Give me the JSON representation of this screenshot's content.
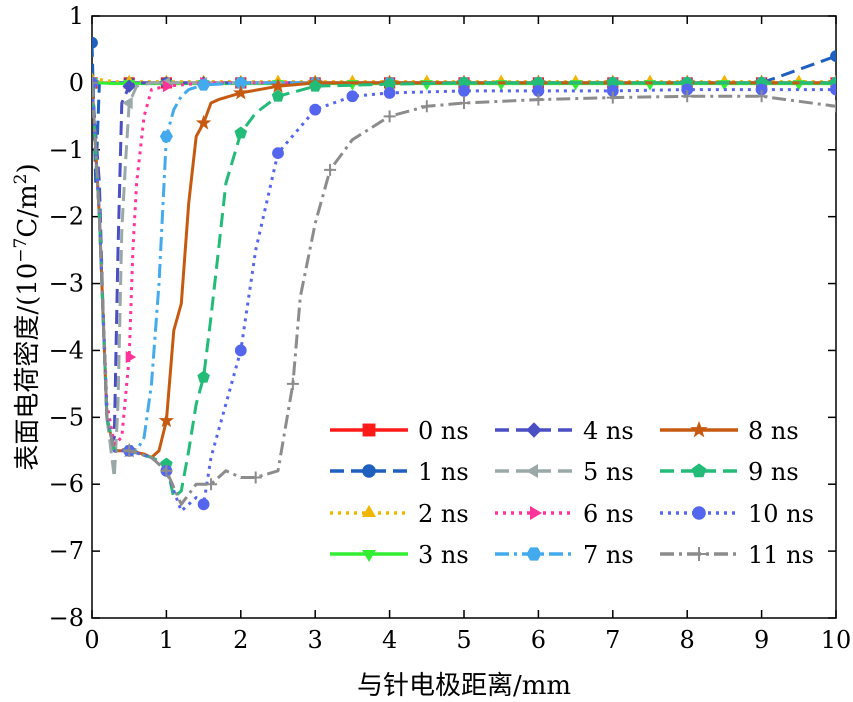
{
  "chart_data": {
    "type": "line",
    "xlabel": "与针电极距离/mm",
    "ylabel_main": "表面电荷密度/(10",
    "ylabel_exp": "−7",
    "ylabel_unit": "C/m",
    "ylabel_unit_exp": "2",
    "ylabel_close": ")",
    "xlim": [
      0,
      10
    ],
    "ylim": [
      -8,
      1
    ],
    "xticks": [
      "0",
      "1",
      "2",
      "3",
      "4",
      "5",
      "6",
      "7",
      "8",
      "9",
      "10"
    ],
    "yticks": [
      "1",
      "0",
      "−1",
      "−2",
      "−3",
      "−4",
      "−5",
      "−6",
      "−7",
      "−8"
    ],
    "legend_position": "lower-right",
    "series": [
      {
        "name": "0 ns",
        "color": "#ff1a1a",
        "marker": "square",
        "dash": "solid",
        "x": [
          0,
          0.1,
          0.5,
          1,
          2,
          3,
          4,
          5,
          6,
          7,
          8,
          9,
          10
        ],
        "y": [
          0,
          0,
          0,
          0,
          0,
          0,
          0,
          0,
          0,
          0,
          0,
          0,
          0
        ]
      },
      {
        "name": "1 ns",
        "color": "#1f5fbf",
        "marker": "circle",
        "dash": "dash",
        "x": [
          0,
          0.05,
          0.1,
          0.5,
          1,
          2,
          3,
          4,
          5,
          6,
          7,
          8,
          9,
          10
        ],
        "y": [
          0.6,
          -1.5,
          0,
          0,
          0,
          0,
          0,
          0,
          0,
          0,
          0,
          0,
          0,
          0.4
        ]
      },
      {
        "name": "2 ns",
        "color": "#f2b500",
        "marker": "triangle-up",
        "dash": "dot",
        "x": [
          0,
          0.1,
          0.3,
          0.5,
          1,
          1.5,
          2,
          2.5,
          3,
          3.5,
          4,
          4.5,
          5,
          5.5,
          6,
          6.5,
          7,
          7.5,
          8,
          8.5,
          9,
          9.5,
          10
        ],
        "y": [
          0.05,
          0.05,
          0.02,
          0.02,
          0.02,
          0.02,
          0.02,
          0.02,
          0.02,
          0.02,
          0.02,
          0.02,
          0.02,
          0.02,
          0.02,
          0.02,
          0.02,
          0.02,
          0.02,
          0.02,
          0.02,
          0.02,
          0.02
        ]
      },
      {
        "name": "3 ns",
        "color": "#33ee33",
        "marker": "triangle-down",
        "dash": "solid",
        "x": [
          0,
          0.1,
          0.3,
          0.5,
          1,
          1.5,
          2,
          2.5,
          3,
          3.5,
          4,
          4.5,
          5,
          5.5,
          6,
          6.5,
          7,
          7.5,
          8,
          8.5,
          9,
          9.5,
          10
        ],
        "y": [
          0.02,
          0,
          -0.01,
          -0.01,
          -0.01,
          -0.01,
          -0.01,
          -0.01,
          -0.01,
          -0.01,
          -0.01,
          -0.01,
          -0.01,
          -0.01,
          -0.01,
          -0.01,
          -0.01,
          -0.01,
          -0.01,
          -0.01,
          -0.01,
          -0.01,
          -0.01
        ]
      },
      {
        "name": "4 ns",
        "color": "#4a4fc4",
        "marker": "diamond",
        "dash": "dash",
        "x": [
          0,
          0.1,
          0.15,
          0.2,
          0.25,
          0.3,
          0.35,
          0.4,
          0.5,
          0.6,
          0.8,
          1,
          1.5,
          2,
          3,
          4,
          5,
          6,
          7,
          8,
          9,
          10
        ],
        "y": [
          0,
          -1.5,
          -3.5,
          -5,
          -5.4,
          -5.3,
          -2.5,
          -0.3,
          -0.05,
          0,
          0,
          0,
          0,
          0,
          0,
          0,
          0,
          0,
          0,
          0,
          0,
          0
        ]
      },
      {
        "name": "5 ns",
        "color": "#9aa8a8",
        "marker": "triangle-left",
        "dash": "dash",
        "x": [
          0,
          0.1,
          0.2,
          0.3,
          0.35,
          0.4,
          0.45,
          0.5,
          0.6,
          0.8,
          1,
          1.5,
          2,
          3,
          4,
          5,
          6,
          7,
          8,
          9,
          10
        ],
        "y": [
          0,
          -2,
          -5,
          -5.9,
          -4.8,
          -2.2,
          -1.2,
          -0.3,
          -0.05,
          0,
          0,
          0,
          0,
          0,
          0,
          0,
          0,
          0,
          0,
          0,
          0
        ]
      },
      {
        "name": "6 ns",
        "color": "#ff3399",
        "marker": "triangle-right",
        "dash": "dot",
        "x": [
          0,
          0.1,
          0.2,
          0.3,
          0.4,
          0.5,
          0.55,
          0.6,
          0.7,
          0.8,
          1,
          1.5,
          2,
          3,
          4,
          5,
          6,
          7,
          8,
          9,
          10
        ],
        "y": [
          0,
          -2,
          -4.8,
          -5.4,
          -5.3,
          -4.1,
          -2.5,
          -1.5,
          -0.5,
          -0.1,
          -0.05,
          0,
          0,
          0,
          0,
          0,
          0,
          0,
          0,
          0,
          0
        ]
      },
      {
        "name": "7 ns",
        "color": "#44aaee",
        "marker": "hexagon",
        "dash": "dashdot",
        "x": [
          0,
          0.1,
          0.2,
          0.3,
          0.5,
          0.6,
          0.7,
          0.8,
          0.9,
          1,
          1.1,
          1.2,
          1.3,
          1.5,
          2,
          3,
          4,
          5,
          6,
          7,
          8,
          9,
          10
        ],
        "y": [
          0,
          -2,
          -5,
          -5.5,
          -5.5,
          -5.5,
          -5.3,
          -4.5,
          -3,
          -0.8,
          -0.4,
          -0.2,
          -0.1,
          -0.03,
          0,
          0,
          0,
          0,
          0,
          0,
          0,
          0,
          0
        ]
      },
      {
        "name": "8 ns",
        "color": "#c65a11",
        "marker": "star",
        "dash": "solid",
        "x": [
          0,
          0.1,
          0.2,
          0.3,
          0.5,
          0.7,
          0.8,
          0.9,
          1,
          1.1,
          1.2,
          1.3,
          1.4,
          1.5,
          1.6,
          1.7,
          2,
          2.5,
          3,
          4,
          5,
          6,
          7,
          8,
          9,
          10
        ],
        "y": [
          0,
          -2,
          -5,
          -5.5,
          -5.5,
          -5.55,
          -5.6,
          -5.5,
          -5.05,
          -3.7,
          -3.3,
          -1.8,
          -0.8,
          -0.6,
          -0.3,
          -0.25,
          -0.15,
          -0.05,
          0,
          0,
          0,
          0,
          0,
          0,
          0,
          0
        ]
      },
      {
        "name": "9 ns",
        "color": "#22bb77",
        "marker": "pentagon",
        "dash": "dash",
        "x": [
          0,
          0.1,
          0.2,
          0.3,
          0.5,
          0.8,
          1,
          1.1,
          1.2,
          1.3,
          1.4,
          1.5,
          1.6,
          1.7,
          1.8,
          2,
          2.2,
          2.5,
          3,
          4,
          5,
          6,
          7,
          8,
          9,
          10
        ],
        "y": [
          0,
          -2,
          -5,
          -5.5,
          -5.5,
          -5.6,
          -5.7,
          -6.2,
          -6.1,
          -5.5,
          -4.8,
          -4.4,
          -3.5,
          -2.5,
          -1.5,
          -0.75,
          -0.45,
          -0.2,
          -0.05,
          -0.02,
          0,
          0,
          0,
          0,
          0,
          0
        ]
      },
      {
        "name": "10 ns",
        "color": "#5566ee",
        "marker": "circle",
        "dash": "dot",
        "x": [
          0,
          0.1,
          0.2,
          0.3,
          0.5,
          0.8,
          1,
          1.2,
          1.4,
          1.5,
          1.6,
          1.8,
          2,
          2.2,
          2.5,
          3,
          3.5,
          4,
          5,
          6,
          7,
          8,
          9,
          10
        ],
        "y": [
          0,
          -2,
          -5,
          -5.5,
          -5.5,
          -5.6,
          -5.8,
          -6.4,
          -6.2,
          -6.3,
          -5.6,
          -4.8,
          -4,
          -2.5,
          -1.05,
          -0.4,
          -0.2,
          -0.15,
          -0.12,
          -0.12,
          -0.12,
          -0.1,
          -0.1,
          -0.1
        ]
      },
      {
        "name": "11 ns",
        "color": "#8c8c8c",
        "marker": "plus",
        "dash": "dashdot",
        "x": [
          0,
          0.1,
          0.2,
          0.3,
          0.5,
          0.8,
          1,
          1.2,
          1.4,
          1.6,
          1.8,
          2,
          2.2,
          2.5,
          2.7,
          2.8,
          3,
          3.2,
          3.5,
          4,
          4.5,
          5,
          6,
          7,
          8,
          9,
          10
        ],
        "y": [
          0,
          -2,
          -5,
          -5.5,
          -5.5,
          -5.6,
          -5.8,
          -6.3,
          -6,
          -6,
          -5.8,
          -5.9,
          -5.9,
          -5.8,
          -4.5,
          -3.2,
          -2.1,
          -1.3,
          -0.85,
          -0.5,
          -0.35,
          -0.3,
          -0.25,
          -0.22,
          -0.2,
          -0.2,
          -0.35
        ]
      }
    ]
  }
}
